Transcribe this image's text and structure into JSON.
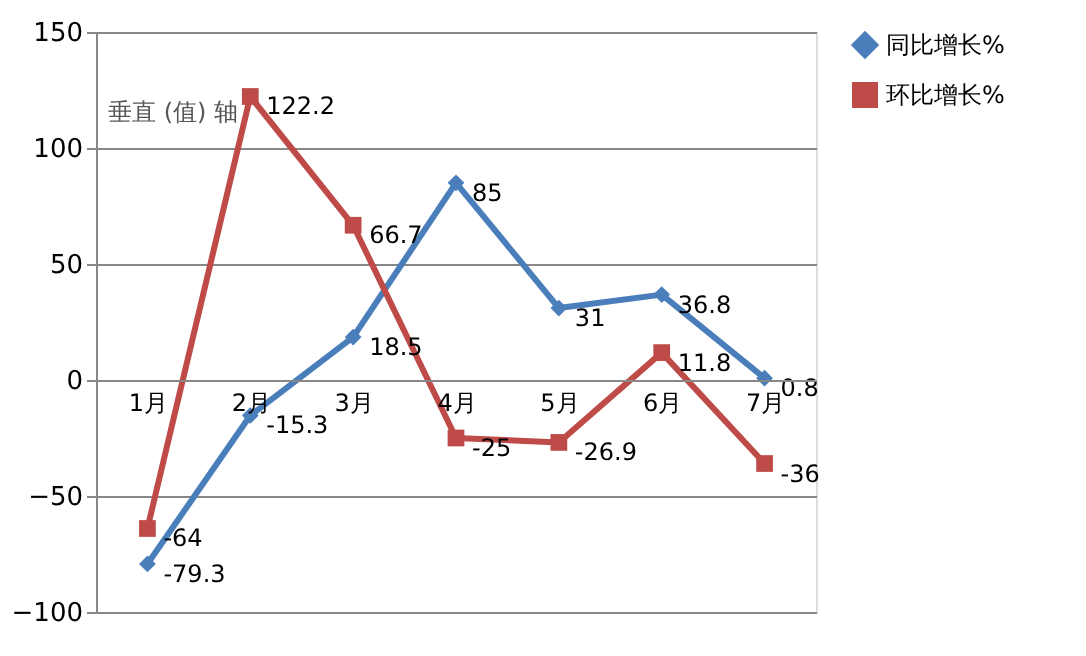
{
  "chart_data": {
    "type": "line",
    "categories": [
      "1月",
      "2月",
      "3月",
      "4月",
      "5月",
      "6月",
      "7月"
    ],
    "series": [
      {
        "name": "同比增长%",
        "color": "#4a7ebb",
        "marker": "diamond",
        "values": [
          -79.3,
          -15.3,
          18.5,
          85,
          31,
          36.8,
          0.8
        ]
      },
      {
        "name": "环比增长%",
        "color": "#be4b48",
        "marker": "square",
        "values": [
          -64,
          122.2,
          66.7,
          -25,
          -26.9,
          11.8,
          -36
        ]
      }
    ],
    "ylim": [
      -100,
      150
    ],
    "yticks": [
      -100,
      -50,
      0,
      50,
      100,
      150
    ],
    "grid": "y",
    "legend": "right",
    "data_labels": true,
    "annotations": [
      "垂直 (值) 轴"
    ]
  }
}
